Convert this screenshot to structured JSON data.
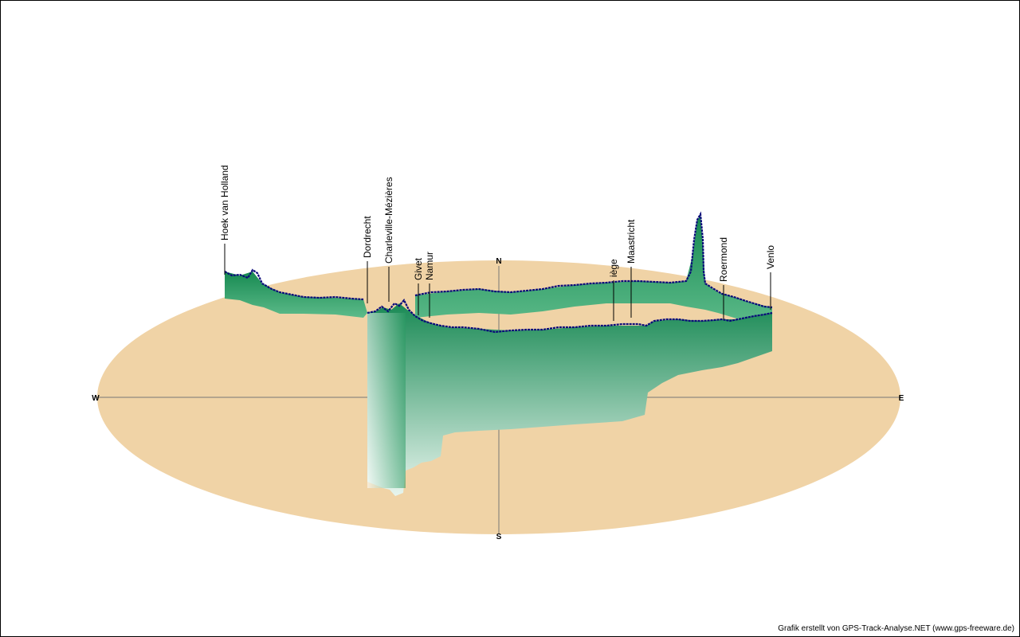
{
  "chart_data": {
    "type": "area",
    "view": "3d-track-elevation-profile",
    "compass": {
      "north": "N",
      "south": "S",
      "east": "E",
      "west": "W"
    },
    "ground_color": "#f0d3a6",
    "profile_colors": {
      "top": "#1a8a55",
      "bottom": "#ffffff",
      "outline": "#0a0a7a"
    },
    "waypoints": [
      {
        "name": "Hoek van Holland"
      },
      {
        "name": "Dordrecht"
      },
      {
        "name": "Charleville-Mézières"
      },
      {
        "name": "Givet"
      },
      {
        "name": "Namur"
      },
      {
        "name": "iège"
      },
      {
        "name": "Maastricht"
      },
      {
        "name": "Roermond"
      },
      {
        "name": "Venlo"
      }
    ]
  },
  "credit": "Grafik erstellt von GPS-Track-Analyse.NET (www.gps-freeware.de)"
}
